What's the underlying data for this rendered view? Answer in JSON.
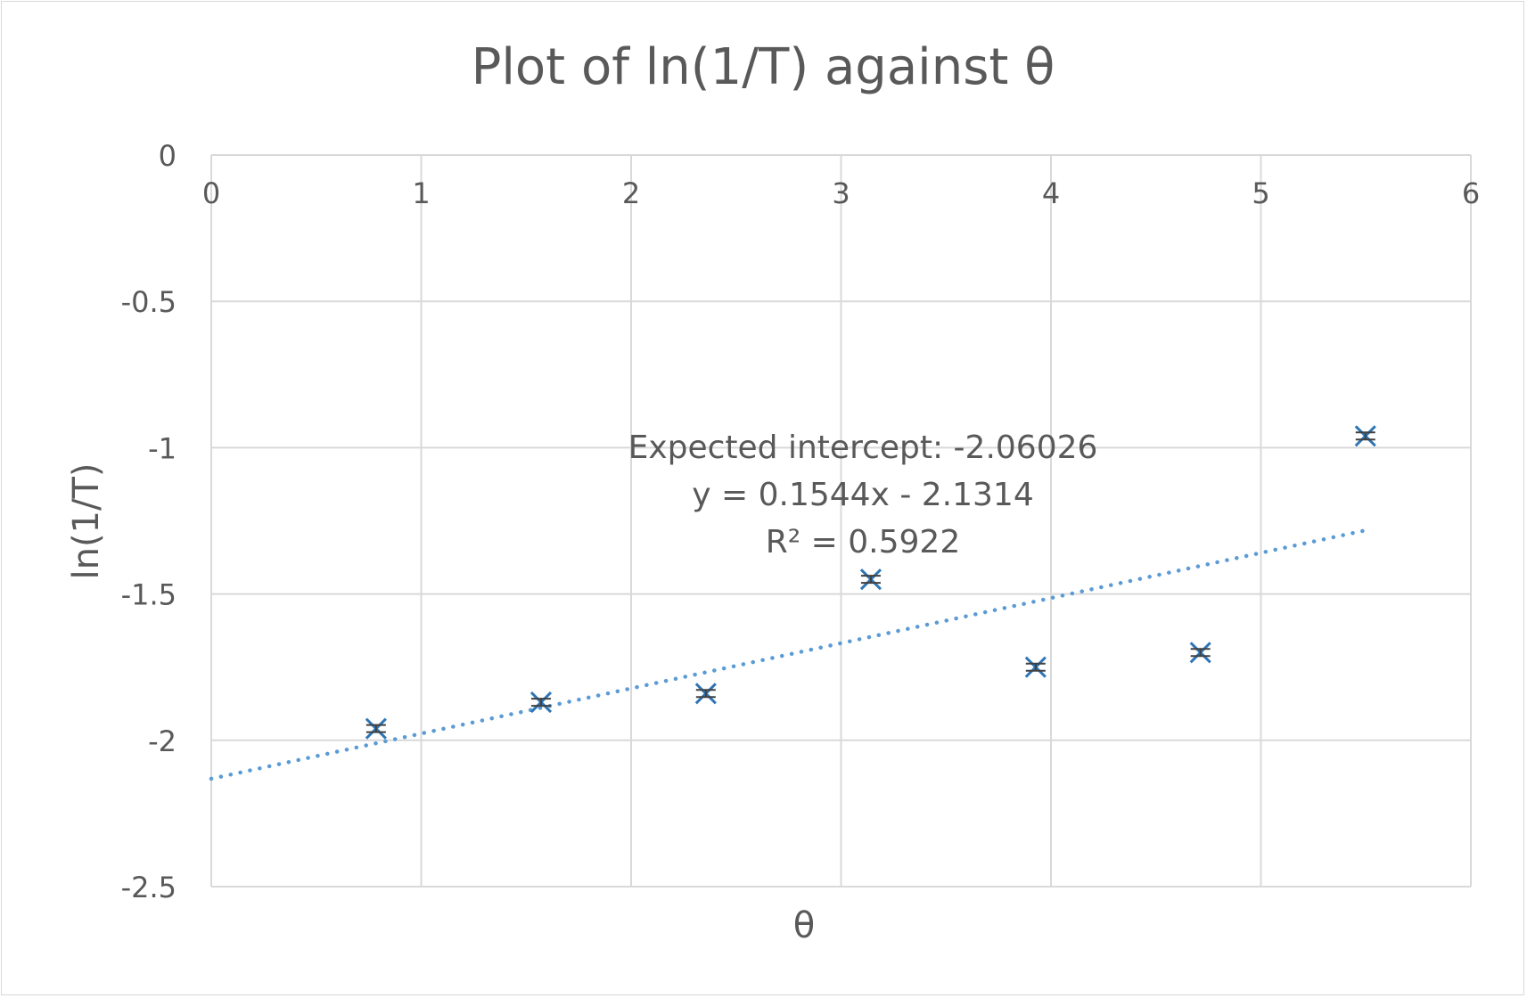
{
  "chart_data": {
    "type": "scatter",
    "title": "Plot of ln(1/T) against θ",
    "xlabel": "θ",
    "ylabel": "ln(1/T)",
    "xlim": [
      0,
      6
    ],
    "ylim": [
      -2.5,
      0
    ],
    "x_ticks": [
      0,
      1,
      2,
      3,
      4,
      5,
      6
    ],
    "y_ticks": [
      0,
      -0.5,
      -1,
      -1.5,
      -2,
      -2.5
    ],
    "x_tick_labels": [
      "0",
      "1",
      "2",
      "3",
      "4",
      "5",
      "6"
    ],
    "y_tick_labels": [
      "0",
      "-0.5",
      "-1",
      "-1.5",
      "-2",
      "-2.5"
    ],
    "grid": true,
    "legend": "none",
    "series": [
      {
        "marker": "x",
        "color": "#2e75b6",
        "x": [
          0.785,
          1.571,
          2.356,
          3.142,
          3.927,
          4.712,
          5.498
        ],
        "y": [
          -1.96,
          -1.87,
          -1.84,
          -1.45,
          -1.75,
          -1.7,
          -0.96
        ]
      }
    ],
    "trendline": {
      "type": "linear",
      "style": "dotted",
      "color": "#5b9bd5",
      "slope": 0.1544,
      "intercept": -2.1314,
      "x_range": [
        0,
        5.5
      ]
    },
    "annotations": [
      "Expected intercept: -2.06026",
      "y = 0.1544x - 2.1314",
      "R² = 0.5922"
    ]
  }
}
